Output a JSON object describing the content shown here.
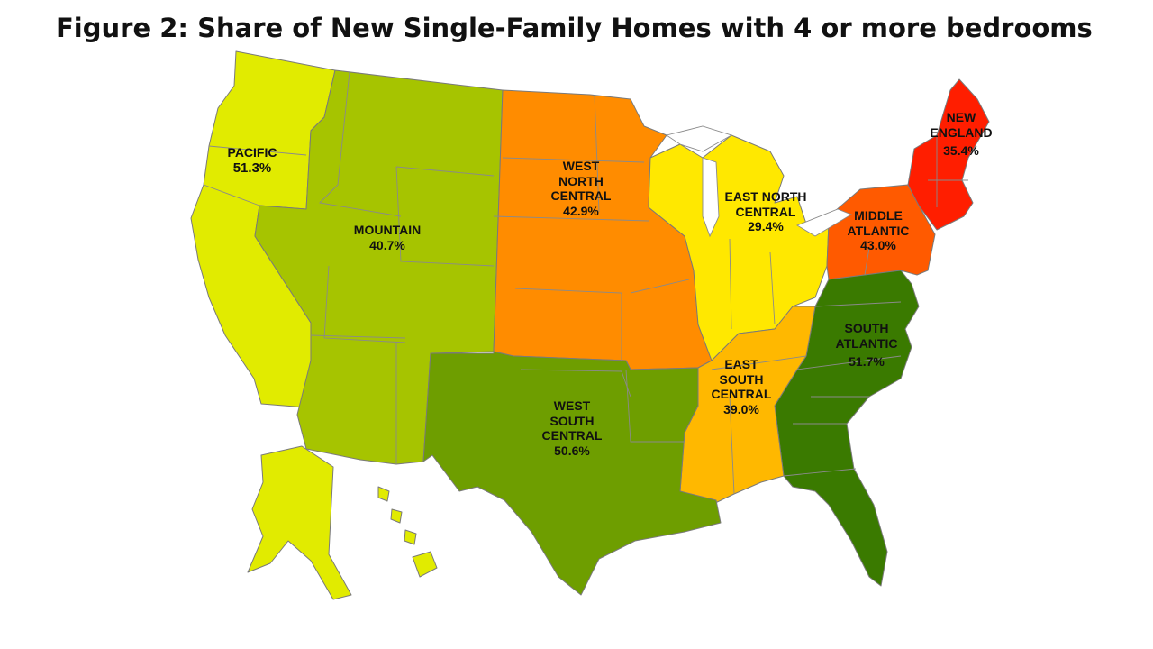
{
  "title": "Figure 2: Share of New Single-Family Homes with 4 or more bedrooms",
  "regions": {
    "pacific": {
      "name_lines": [
        "PACIFIC"
      ],
      "value": "51.3%",
      "share": 51.3,
      "color": "#e1eb00"
    },
    "mountain": {
      "name_lines": [
        "MOUNTAIN"
      ],
      "value": "40.7%",
      "share": 40.7,
      "color": "#a6c400"
    },
    "west_north_central": {
      "name_lines": [
        "WEST",
        "NORTH",
        "CENTRAL"
      ],
      "value": "42.9%",
      "share": 42.9,
      "color": "#ff8c00"
    },
    "east_north_central": {
      "name_lines": [
        "EAST NORTH",
        "CENTRAL"
      ],
      "value": "29.4%",
      "share": 29.4,
      "color": "#ffe800"
    },
    "middle_atlantic": {
      "name_lines": [
        "MIDDLE",
        "ATLANTIC"
      ],
      "value": "43.0%",
      "share": 43.0,
      "color": "#ff5a00"
    },
    "new_england": {
      "name_lines": [
        "NEW",
        "ENGLAND"
      ],
      "value": "35.4%",
      "share": 35.4,
      "color": "#ff1e00"
    },
    "west_south_central": {
      "name_lines": [
        "WEST",
        "SOUTH",
        "CENTRAL"
      ],
      "value": "50.6%",
      "share": 50.6,
      "color": "#6e9e00"
    },
    "east_south_central": {
      "name_lines": [
        "EAST",
        "SOUTH",
        "CENTRAL"
      ],
      "value": "39.0%",
      "share": 39.0,
      "color": "#ffb800"
    },
    "south_atlantic": {
      "name_lines": [
        "SOUTH",
        "ATLANTIC"
      ],
      "value": "51.7%",
      "share": 51.7,
      "color": "#3a7a00"
    }
  }
}
